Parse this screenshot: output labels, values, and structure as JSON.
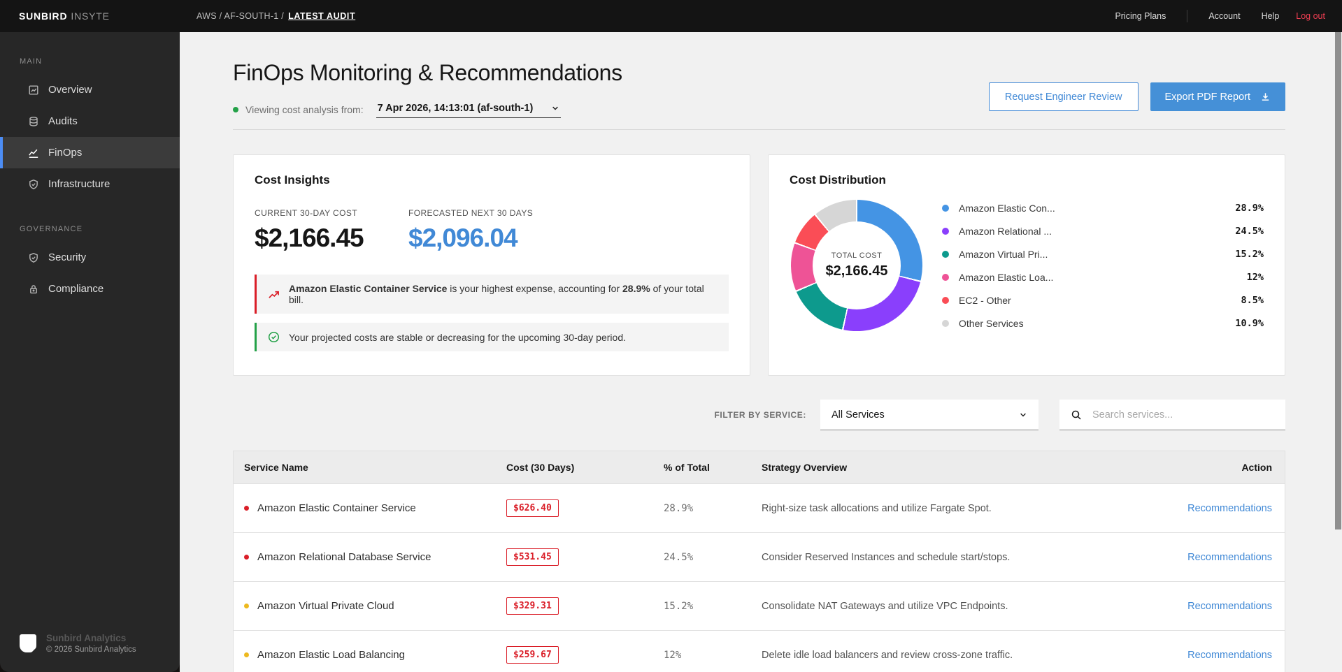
{
  "topbar": {
    "brand_bold": "SUNBIRD",
    "brand_light": "INSYTE",
    "breadcrumb_prefix": "AWS / AF-SOUTH-1 /",
    "breadcrumb_current": "LATEST AUDIT",
    "nav_items": [
      "Pricing Plans",
      "Account",
      "Help"
    ],
    "logout_label": "Log out"
  },
  "sidebar": {
    "sections": [
      {
        "label": "MAIN",
        "items": [
          {
            "label": "Overview",
            "icon": "overview-icon",
            "active": false
          },
          {
            "label": "Audits",
            "icon": "audits-icon",
            "active": false
          },
          {
            "label": "FinOps",
            "icon": "finops-icon",
            "active": true
          },
          {
            "label": "Infrastructure",
            "icon": "infrastructure-icon",
            "active": false
          }
        ]
      },
      {
        "label": "GOVERNANCE",
        "items": [
          {
            "label": "Security",
            "icon": "security-icon",
            "active": false
          },
          {
            "label": "Compliance",
            "icon": "compliance-icon",
            "active": false
          }
        ]
      }
    ],
    "footer_brand": "Sunbird Analytics",
    "footer_copyright": "© 2026 Sunbird Analytics"
  },
  "header": {
    "title": "FinOps Monitoring & Recommendations",
    "viewing_label": "Viewing cost analysis from:",
    "snapshot_value": "7 Apr 2026, 14:13:01 (af-south-1)",
    "review_button": "Request Engineer Review",
    "export_button": "Export PDF Report"
  },
  "cost_insights": {
    "title": "Cost Insights",
    "current_label": "CURRENT 30-DAY COST",
    "current_value": "$2,166.45",
    "forecast_label": "FORECASTED NEXT 30 DAYS",
    "forecast_value": "$2,096.04",
    "alerts": [
      {
        "type": "danger",
        "icon": "trend-up-icon",
        "segments": [
          {
            "t": "Amazon Elastic Container Service",
            "b": true
          },
          {
            "t": " is your highest expense, accounting for ",
            "b": false
          },
          {
            "t": "28.9%",
            "b": true
          },
          {
            "t": " of your total bill.",
            "b": false
          }
        ]
      },
      {
        "type": "success",
        "icon": "check-circle-icon",
        "segments": [
          {
            "t": "Your projected costs are stable or decreasing for the upcoming 30-day period.",
            "b": false
          }
        ]
      }
    ]
  },
  "chart_data": {
    "type": "pie",
    "title": "Cost Distribution",
    "center_label": "TOTAL COST",
    "center_value": "$2,166.45",
    "legend_position": "right",
    "segments": [
      {
        "label": "Amazon Elastic Con...",
        "value": 28.9,
        "display": "28.9%",
        "color": "#4494e4"
      },
      {
        "label": "Amazon Relational ...",
        "value": 24.5,
        "display": "24.5%",
        "color": "#8a3ffc"
      },
      {
        "label": "Amazon Virtual Pri...",
        "value": 15.2,
        "display": "15.2%",
        "color": "#0d9a8d"
      },
      {
        "label": "Amazon Elastic Loa...",
        "value": 12,
        "display": "12%",
        "color": "#ee5396"
      },
      {
        "label": "EC2 - Other",
        "value": 8.5,
        "display": "8.5%",
        "color": "#fa4d56"
      },
      {
        "label": "Other Services",
        "value": 10.9,
        "display": "10.9%",
        "color": "#d6d6d6"
      }
    ]
  },
  "filter": {
    "label": "FILTER BY SERVICE:",
    "selected_option": "All Services",
    "search_placeholder": "Search services..."
  },
  "table": {
    "headers": [
      "Service Name",
      "Cost (30 Days)",
      "% of Total",
      "Strategy Overview",
      "Action"
    ],
    "rows": [
      {
        "dot": "#da1e28",
        "name": "Amazon Elastic Container Service",
        "cost": "$626.40",
        "pct": "28.9%",
        "strategy": "Right-size task allocations and utilize Fargate Spot.",
        "action": "Recommendations"
      },
      {
        "dot": "#da1e28",
        "name": "Amazon Relational Database Service",
        "cost": "$531.45",
        "pct": "24.5%",
        "strategy": "Consider Reserved Instances and schedule start/stops.",
        "action": "Recommendations"
      },
      {
        "dot": "#edb91f",
        "name": "Amazon Virtual Private Cloud",
        "cost": "$329.31",
        "pct": "15.2%",
        "strategy": "Consolidate NAT Gateways and utilize VPC Endpoints.",
        "action": "Recommendations"
      },
      {
        "dot": "#edb91f",
        "name": "Amazon Elastic Load Balancing",
        "cost": "$259.67",
        "pct": "12%",
        "strategy": "Delete idle load balancers and review cross-zone traffic.",
        "action": "Recommendations"
      }
    ]
  },
  "colors": {
    "accent_blue": "#4189d6",
    "danger_red": "#da1e28",
    "success_green": "#24a148",
    "warning_yellow": "#edb91f",
    "logout_red": "#f03e52",
    "active_nav_bar": "#4c8df5"
  }
}
